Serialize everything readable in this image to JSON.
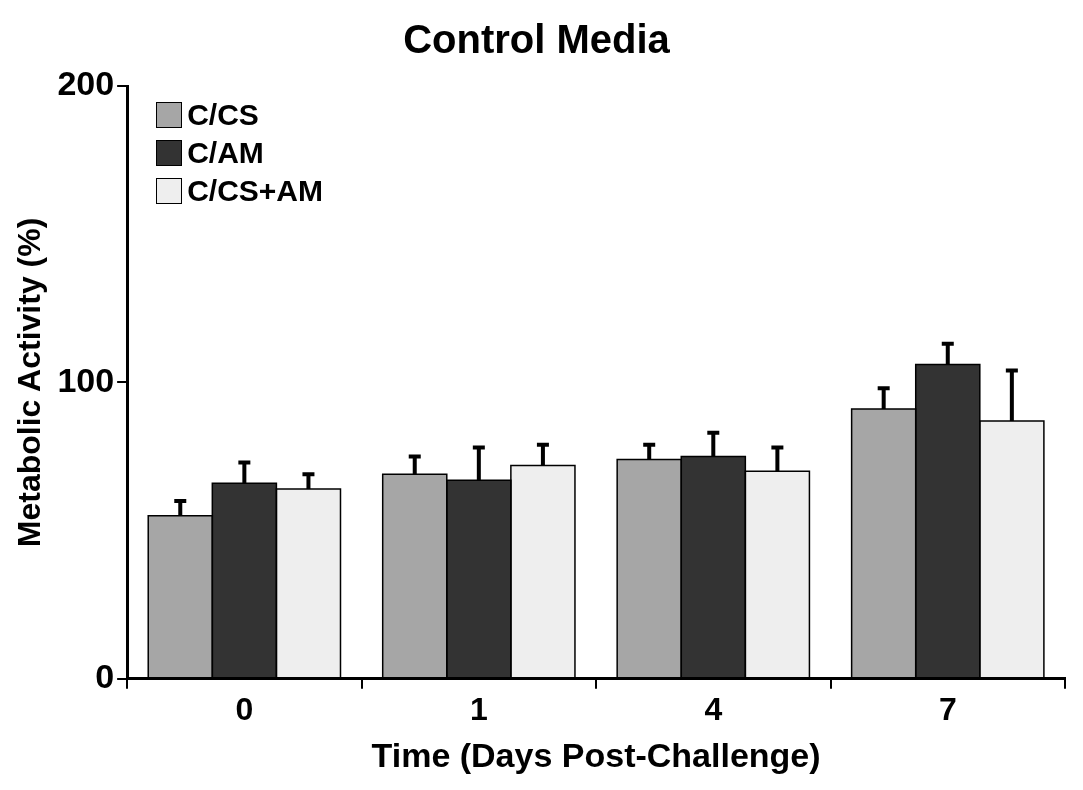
{
  "chart_data": {
    "type": "bar",
    "title": "Control Media",
    "xlabel": "Time (Days Post-Challenge)",
    "ylabel": "Metabolic Activity (%)",
    "categories": [
      "0",
      "1",
      "4",
      "7"
    ],
    "series": [
      {
        "name": "C/CS",
        "color": "#a6a6a6",
        "values": [
          55,
          69,
          74,
          91
        ],
        "errors": [
          [
            55,
            60
          ],
          [
            69,
            75
          ],
          [
            74,
            79
          ],
          [
            91,
            98
          ]
        ]
      },
      {
        "name": "C/AM",
        "color": "#333333",
        "values": [
          66,
          67,
          75,
          106
        ],
        "errors": [
          [
            66,
            73
          ],
          [
            67,
            78
          ],
          [
            75,
            83
          ],
          [
            106,
            113
          ]
        ]
      },
      {
        "name": "C/CS+AM",
        "color": "#eeeeee",
        "values": [
          64,
          72,
          70,
          87
        ],
        "errors": [
          [
            64,
            69
          ],
          [
            72,
            79
          ],
          [
            70,
            78
          ],
          [
            87,
            104
          ]
        ]
      }
    ],
    "ylim": [
      0,
      200
    ],
    "yticks": [
      0,
      100,
      200
    ],
    "grid": false,
    "legend": "top left"
  }
}
